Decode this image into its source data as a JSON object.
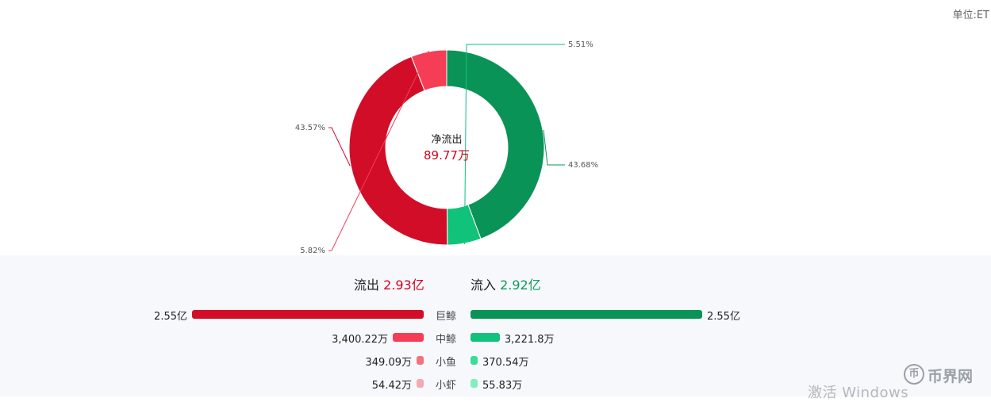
{
  "unit_label": "单位:ET",
  "chart_data": {
    "type": "donut",
    "center": {
      "label": "净流出",
      "value": "89.77万"
    },
    "slices": [
      {
        "name": "巨鲸流入",
        "percent": 43.68,
        "label": "43.68%",
        "color": "#0a9356"
      },
      {
        "name": "中鲸流入",
        "percent": 5.51,
        "label": "5.51%",
        "color": "#10c27a"
      },
      {
        "name": "巨鲸流出",
        "percent": 43.57,
        "label": "43.57%",
        "color": "#d20d28"
      },
      {
        "name": "中鲸流出",
        "percent": 5.82,
        "label": "5.82%",
        "color": "#f53d56"
      }
    ]
  },
  "totals": {
    "outflow_label": "流出",
    "outflow_value": "2.93亿",
    "inflow_label": "流入",
    "inflow_value": "2.92亿"
  },
  "flow_bars": [
    {
      "category": "巨鲸",
      "outflow": 255000000.0,
      "outflow_label": "2.55亿",
      "inflow": 255000000.0,
      "inflow_label": "2.55亿",
      "out_color": "#d20d28",
      "in_color": "#0a9356"
    },
    {
      "category": "中鲸",
      "outflow": 34002200.0,
      "outflow_label": "3,400.22万",
      "inflow": 32218000.0,
      "inflow_label": "3,221.8万",
      "out_color": "#f53d56",
      "in_color": "#10c27a"
    },
    {
      "category": "小鱼",
      "outflow": 3490900.0,
      "outflow_label": "349.09万",
      "inflow": 3705400.0,
      "inflow_label": "370.54万",
      "out_color": "#f4727f",
      "in_color": "#3bdc97"
    },
    {
      "category": "小虾",
      "outflow": 544200.0,
      "outflow_label": "54.42万",
      "inflow": 558300.0,
      "inflow_label": "55.83万",
      "out_color": "#f7a9b1",
      "in_color": "#7ff0bd"
    }
  ],
  "watermark": "激活 Windows",
  "logo": {
    "icon": "币",
    "brand": "币界网"
  }
}
